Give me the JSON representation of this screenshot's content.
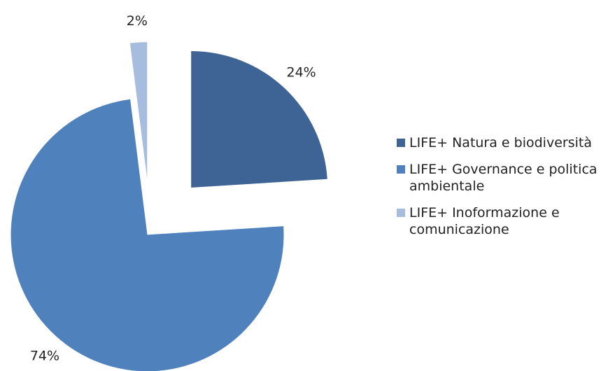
{
  "chart_data": {
    "type": "pie",
    "categories": [
      "LIFE+ Natura e biodiversità",
      "LIFE+ Governance e politica ambientale",
      "LIFE+ Inoformazione e comunicazione"
    ],
    "values": [
      24,
      74,
      2
    ],
    "value_labels": [
      "24%",
      "74%",
      "2%"
    ],
    "colors": [
      "#3e6496",
      "#4f81bd",
      "#a7bde0"
    ],
    "legend": "right"
  }
}
